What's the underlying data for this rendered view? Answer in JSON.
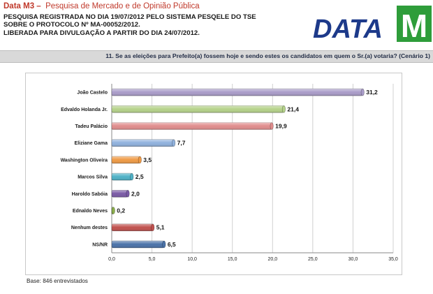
{
  "header": {
    "title_brand": "Data M3 –",
    "title_rest": "Pesquisa de Mercado e de Opinião Pública",
    "line1": "PESQUISA REGISTRADA NO DIA 19/07/2012 PELO SISTEMA PESQELE DO TSE",
    "line2": "SOBRE O PROTOCOLO Nº MA-00052/2012.",
    "line3": "LIBERADA PARA DIVULGAÇÃO A PARTIR DO DIA 24/07/2012.",
    "logo_text": "DATA",
    "logo_mark": "M"
  },
  "question": "11. Se as eleições para Prefeito(a) fossem hoje e sendo estes os candidatos em quem o Sr.(a) votaria? (Cenário 1)",
  "footer": {
    "base": "Base: 846 entrevistados"
  },
  "colors": {
    "brand_red": "#c0392b",
    "logo_blue": "#1d3a8a",
    "logo_green": "#2e9d3a"
  },
  "chart_data": {
    "type": "bar",
    "orientation": "horizontal",
    "title": "",
    "xlabel": "",
    "ylabel": "",
    "xlim": [
      0,
      35
    ],
    "ticks": [
      0,
      5,
      10,
      15,
      20,
      25,
      30,
      35
    ],
    "tick_labels": [
      "0,0",
      "5,0",
      "10,0",
      "15,0",
      "20,0",
      "25,0",
      "30,0",
      "35,0"
    ],
    "grid": true,
    "categories": [
      "João Castelo",
      "Edvaldo Holanda Jr.",
      "Tadeu Palácio",
      "Eliziane Gama",
      "Washington Oliveira",
      "Marcos Silva",
      "Haroldo Sabóia",
      "Ednaldo Neves",
      "Nenhum destes",
      "NS/NR"
    ],
    "values": [
      31.2,
      21.4,
      19.9,
      7.7,
      3.5,
      2.5,
      2.0,
      0.2,
      5.1,
      6.5
    ],
    "value_labels": [
      "31,2",
      "21,4",
      "19,9",
      "7,7",
      "3,5",
      "2,5",
      "2,0",
      "0,2",
      "5,1",
      "6,5"
    ],
    "bar_colors": [
      "#a99cc9",
      "#b5d28a",
      "#e08c8c",
      "#8fb1dd",
      "#ef9a45",
      "#4eb1c6",
      "#7a5aa6",
      "#8cb04c",
      "#c0504d",
      "#4a72a8"
    ]
  }
}
